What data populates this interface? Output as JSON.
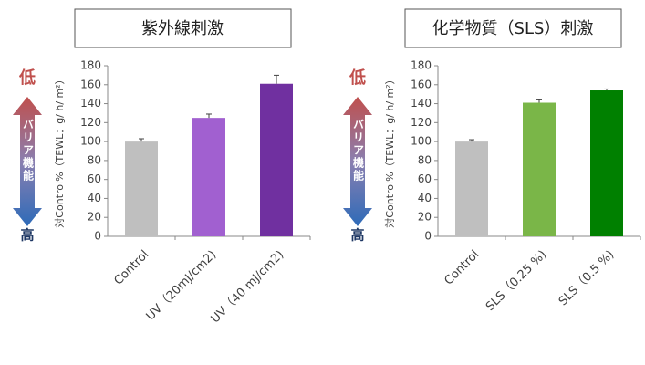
{
  "chart_data": [
    {
      "type": "bar",
      "title": "紫外線刺激",
      "y_label": "対Control%（TEWL：g/ h/ m²）",
      "scale_arrow": {
        "top": "低",
        "middle": "バリア機能",
        "bottom": "高"
      },
      "categories": [
        "Control",
        "UV（20mJ/cm2)",
        "UV（40 mJ/cm2)"
      ],
      "values": [
        100,
        125,
        161
      ],
      "errors": [
        3,
        4,
        9
      ],
      "colors": [
        "#bfbfbf",
        "#a160d0",
        "#7030a0"
      ],
      "ylim": [
        0,
        180
      ],
      "yticks": [
        0,
        20,
        40,
        60,
        80,
        100,
        120,
        140,
        160,
        180
      ]
    },
    {
      "type": "bar",
      "title": "化学物質（SLS）刺激",
      "y_label": "対Control%（TEWL：g/ h/ m²）",
      "scale_arrow": {
        "top": "低",
        "middle": "バリア機能",
        "bottom": "高"
      },
      "categories": [
        "Control",
        "SLS（0.25 %)",
        "SLS（0.5 %)"
      ],
      "values": [
        100,
        141,
        154
      ],
      "errors": [
        2,
        3,
        1.5
      ],
      "colors": [
        "#bfbfbf",
        "#7ab648",
        "#008000"
      ],
      "ylim": [
        0,
        180
      ],
      "yticks": [
        0,
        20,
        40,
        60,
        80,
        100,
        120,
        140,
        160,
        180
      ]
    }
  ]
}
